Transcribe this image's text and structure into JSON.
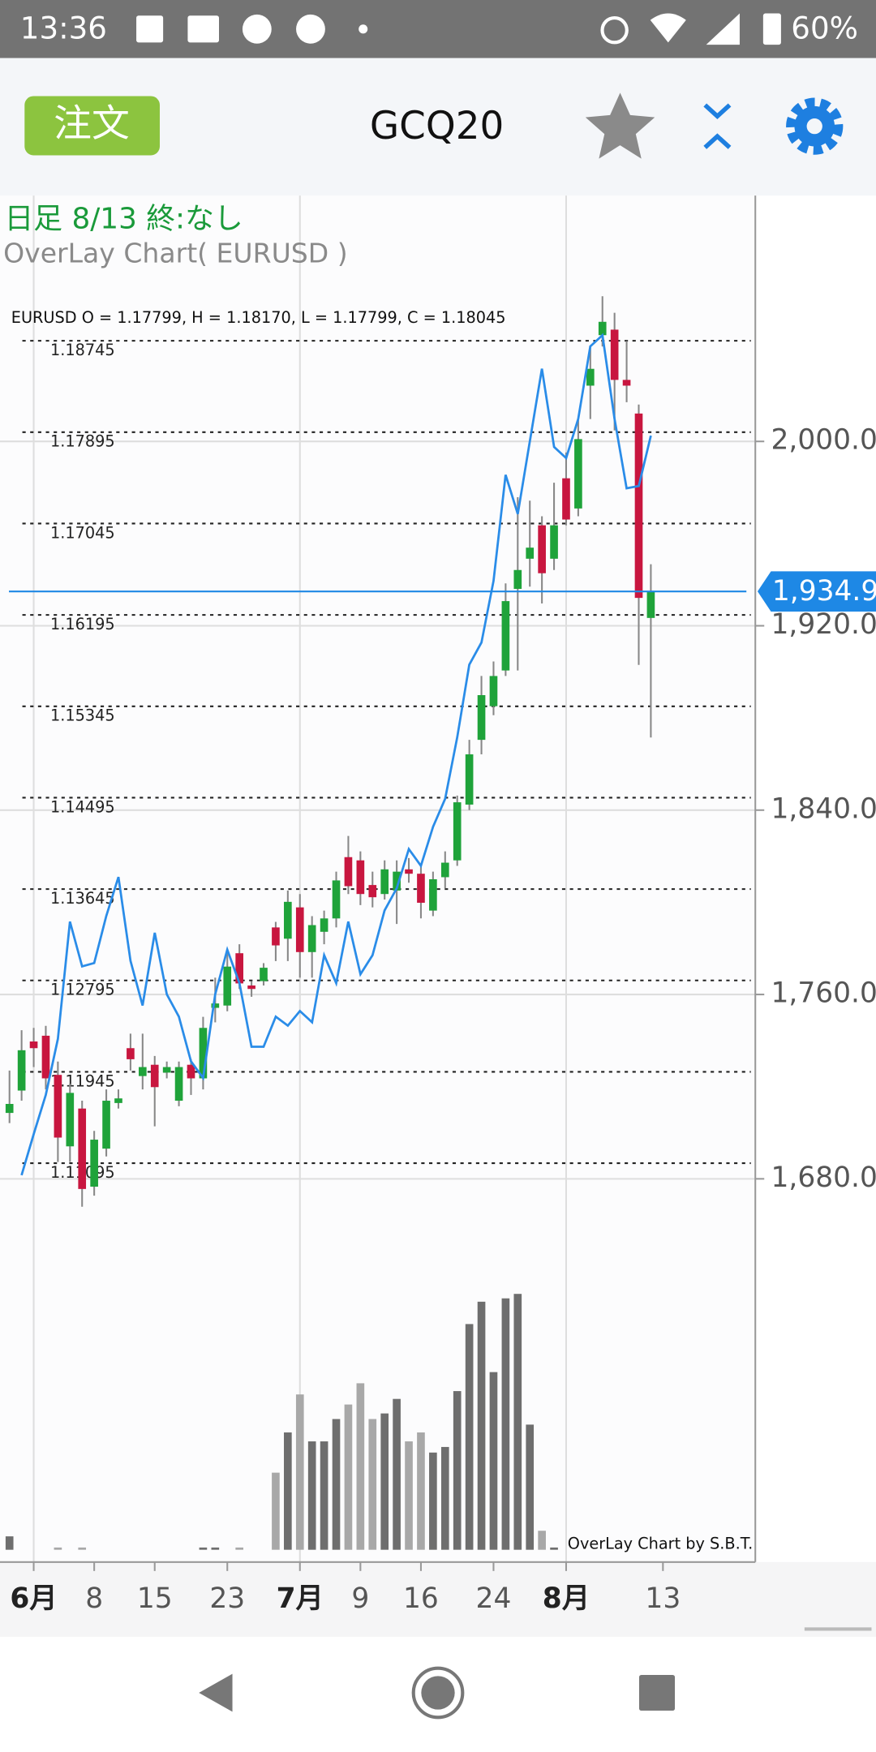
{
  "status_bar": {
    "time": "13:36",
    "battery": "60%"
  },
  "toolbar": {
    "order_button": "注文",
    "symbol": "GCQ20"
  },
  "chart_data": {
    "type": "candlestick",
    "title": "日足 8/13 終:なし",
    "subtitle": "OverLay Chart( EURUSD )",
    "ohlc_label": "EURUSD O = 1.17799, H = 1.18170, L = 1.17799, C = 1.18045",
    "watermark": "OverLay Chart by S.B.T.",
    "categories": [
      null,
      null,
      "6月",
      null,
      null,
      null,
      null,
      "8",
      null,
      null,
      null,
      null,
      "15",
      null,
      null,
      null,
      null,
      null,
      "23",
      null,
      null,
      null,
      null,
      null,
      "7月",
      null,
      null,
      null,
      null,
      "9",
      null,
      null,
      null,
      null,
      "16",
      null,
      null,
      null,
      null,
      null,
      "24",
      null,
      null,
      null,
      null,
      null,
      "8月",
      null,
      null,
      null,
      null,
      null,
      null,
      null,
      "13"
    ],
    "open": [
      1708.6,
      1718.3,
      1739.6,
      1742.1,
      1725.1,
      1694.1,
      1710.5,
      1676.6,
      1693.1,
      1712.9,
      1736.7,
      1724.6,
      1729.5,
      1726.1,
      1713.9,
      1729.5,
      1723.6,
      1754.2,
      1755.2,
      1777.9,
      1763.9,
      1765.8,
      1789.1,
      1784.2,
      1797.8,
      1778.4,
      1787.2,
      1793.0,
      1819.6,
      1818.2,
      1807.5,
      1803.6,
      1805.1,
      1814.3,
      1812.4,
      1796.4,
      1810.9,
      1818.2,
      1842.4,
      1870.5,
      1885.1,
      1900.6,
      1936.0,
      1949.1,
      1963.6,
      1949.1,
      1984.0,
      1970.9,
      2024.2,
      2046.1,
      2048.5,
      2026.7,
      2012.1,
      1923.4,
      null
    ],
    "high": [
      1727.0,
      1744.5,
      1745.5,
      1746.4,
      1730.9,
      1721.2,
      1713.9,
      1700.8,
      1718.8,
      1718.8,
      1743.0,
      1743.0,
      1733.3,
      1730.9,
      1730.9,
      1731.9,
      1750.3,
      1767.3,
      1779.4,
      1781.8,
      1765.8,
      1773.6,
      1791.5,
      1805.1,
      1803.6,
      1794.0,
      1796.4,
      1813.3,
      1828.8,
      1822.1,
      1813.3,
      1818.2,
      1818.2,
      1819.2,
      1815.8,
      1813.3,
      1822.1,
      1846.3,
      1870.5,
      1898.2,
      1904.5,
      1938.4,
      1975.8,
      1974.3,
      1967.5,
      1982.1,
      1995.2,
      2009.7,
      2041.2,
      2063.0,
      2055.8,
      2043.6,
      2016.0,
      1946.7,
      null
    ],
    "low": [
      1704.2,
      1713.9,
      1728.5,
      1718.8,
      1687.3,
      1687.3,
      1667.9,
      1672.7,
      1689.7,
      1710.5,
      1727.0,
      1718.8,
      1702.8,
      1723.6,
      1711.5,
      1716.4,
      1718.8,
      1747.9,
      1752.7,
      1762.4,
      1759.0,
      1763.9,
      1774.5,
      1774.5,
      1767.3,
      1767.3,
      1781.8,
      1789.1,
      1803.6,
      1798.8,
      1797.8,
      1801.2,
      1790.6,
      1808.5,
      1793.0,
      1794.0,
      1806.1,
      1815.8,
      1840.0,
      1864.2,
      1881.2,
      1898.2,
      1900.6,
      1937.0,
      1929.7,
      1944.2,
      1963.6,
      1967.5,
      2009.7,
      2041.2,
      2004.8,
      2017.0,
      1903.0,
      1871.5,
      null
    ],
    "close": [
      1712.5,
      1735.8,
      1736.7,
      1723.6,
      1697.9,
      1717.3,
      1675.6,
      1697.0,
      1713.9,
      1714.9,
      1731.9,
      1728.5,
      1719.8,
      1728.5,
      1728.5,
      1723.6,
      1745.5,
      1756.1,
      1772.1,
      1764.8,
      1762.4,
      1771.6,
      1781.3,
      1800.2,
      1778.4,
      1790.1,
      1793.0,
      1809.5,
      1807.0,
      1803.6,
      1802.2,
      1814.3,
      1813.3,
      1812.4,
      1799.8,
      1810.0,
      1817.2,
      1843.4,
      1864.2,
      1889.9,
      1898.2,
      1930.7,
      1944.2,
      1953.9,
      1942.8,
      1963.6,
      1966.1,
      2001.0,
      2031.5,
      2051.9,
      2026.7,
      2024.2,
      1932.1,
      1934.9,
      null
    ],
    "up_color": "#1fa33a",
    "down_color": "#c8163f",
    "ylim": [
      1513.7,
      2106.7
    ],
    "yticks": [
      {
        "value": 1680,
        "label": "1,680.0"
      },
      {
        "value": 1760,
        "label": "1,760.0"
      },
      {
        "value": 1840,
        "label": "1,840.0"
      },
      {
        "value": 1920,
        "label": "1,920.0"
      },
      {
        "value": 2000,
        "label": "2,000.0"
      }
    ],
    "grid": true,
    "last_price": {
      "value": 1934.9,
      "label": "1,934.9",
      "color": "#1e88e5"
    },
    "overlay": {
      "name": "EURUSD",
      "color": "#2a8ce8",
      "axis": "y2",
      "values": [
        null,
        1.10983,
        1.11367,
        1.11731,
        1.12251,
        1.13342,
        1.12926,
        1.12957,
        1.13394,
        1.13757,
        1.12978,
        1.12562,
        1.13238,
        1.12666,
        1.12458,
        1.12043,
        1.11887,
        1.12666,
        1.13082,
        1.1277,
        1.12178,
        1.12178,
        1.12458,
        1.12375,
        1.1251,
        1.12406,
        1.1303,
        1.1277,
        1.13342,
        1.12853,
        1.1303,
        1.13446,
        1.13653,
        1.14017,
        1.13861,
        1.14225,
        1.14485,
        1.15056,
        1.15732,
        1.15939,
        1.16511,
        1.17498,
        1.17134,
        1.1781,
        1.18485,
        1.17758,
        1.17654,
        1.18018,
        1.18693,
        1.18797,
        1.18018,
        1.17373,
        1.17394,
        1.17862,
        null
      ]
    },
    "y2lim": [
      1.07385,
      1.20096
    ],
    "y2ticks": [
      1.11095,
      1.11945,
      1.12795,
      1.13645,
      1.14495,
      1.15345,
      1.16195,
      1.17045,
      1.17895,
      1.18745
    ],
    "volume": [
      12,
      0,
      0,
      0,
      2,
      0,
      2,
      0,
      0,
      0,
      0,
      0,
      0,
      0,
      0,
      0,
      2,
      2,
      0,
      2,
      0,
      0,
      69,
      105,
      139,
      97,
      97,
      117,
      130,
      149,
      117,
      122,
      135,
      97,
      105,
      87,
      92,
      142,
      202,
      222,
      159,
      225,
      229,
      112,
      17,
      2,
      0,
      0,
      0,
      0,
      0,
      0,
      0,
      0,
      null
    ]
  }
}
